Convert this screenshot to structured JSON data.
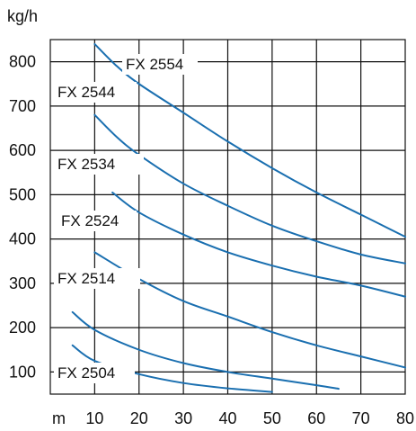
{
  "chart_data": {
    "type": "line",
    "ylabel": "kg/h",
    "xlabel": "m",
    "xlim": [
      0,
      80
    ],
    "ylim": [
      50,
      850
    ],
    "x_ticks": [
      10,
      20,
      30,
      40,
      50,
      60,
      70,
      80
    ],
    "y_ticks": [
      100,
      200,
      300,
      400,
      500,
      600,
      700,
      800
    ],
    "grid": true,
    "line_color": "#1a6fb0",
    "series": [
      {
        "name": "FX 2554",
        "points": [
          [
            10,
            840
          ],
          [
            15,
            790
          ],
          [
            20,
            750
          ],
          [
            30,
            685
          ],
          [
            40,
            620
          ],
          [
            50,
            560
          ],
          [
            60,
            505
          ],
          [
            70,
            455
          ],
          [
            80,
            405
          ]
        ]
      },
      {
        "name": "FX 2544",
        "points": [
          [
            10,
            680
          ],
          [
            15,
            630
          ],
          [
            20,
            590
          ],
          [
            30,
            525
          ],
          [
            40,
            475
          ],
          [
            50,
            430
          ],
          [
            60,
            395
          ],
          [
            70,
            365
          ],
          [
            80,
            345
          ]
        ]
      },
      {
        "name": "FX 2534",
        "points": [
          [
            14,
            505
          ],
          [
            20,
            460
          ],
          [
            30,
            410
          ],
          [
            40,
            370
          ],
          [
            50,
            340
          ],
          [
            60,
            315
          ],
          [
            70,
            295
          ],
          [
            80,
            270
          ]
        ]
      },
      {
        "name": "FX 2524",
        "points": [
          [
            10,
            370
          ],
          [
            20,
            310
          ],
          [
            30,
            260
          ],
          [
            40,
            225
          ],
          [
            50,
            190
          ],
          [
            60,
            160
          ],
          [
            70,
            135
          ],
          [
            80,
            110
          ]
        ]
      },
      {
        "name": "FX 2514",
        "points": [
          [
            5,
            235
          ],
          [
            10,
            195
          ],
          [
            20,
            150
          ],
          [
            30,
            120
          ],
          [
            40,
            100
          ],
          [
            50,
            85
          ],
          [
            60,
            70
          ],
          [
            65,
            62
          ]
        ]
      },
      {
        "name": "FX 2504",
        "points": [
          [
            5,
            160
          ],
          [
            10,
            125
          ],
          [
            20,
            95
          ],
          [
            30,
            75
          ],
          [
            40,
            63
          ],
          [
            50,
            55
          ]
        ]
      }
    ]
  }
}
